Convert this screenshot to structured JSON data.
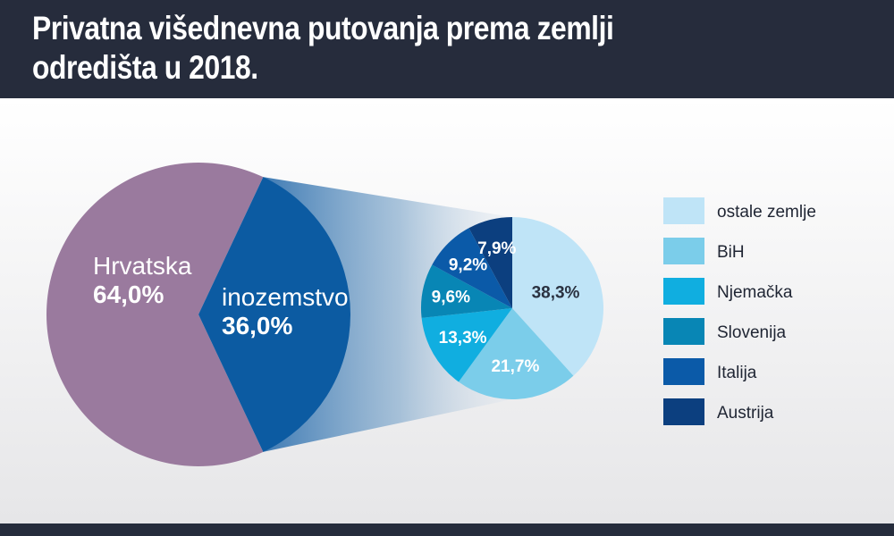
{
  "title": "Privatna višednevna putovanja prema zemlji odredišta u 2018.",
  "chart_data": [
    {
      "type": "pie",
      "slices": [
        {
          "label": "Hrvatska",
          "value": 64.0,
          "value_label": "64,0%",
          "color": "#9a7a9e"
        },
        {
          "label": "inozemstvo",
          "value": 36.0,
          "value_label": "36,0%",
          "color": "#0c5ba2"
        }
      ]
    },
    {
      "type": "pie",
      "slices": [
        {
          "label": "ostale zemlje",
          "value": 38.3,
          "value_label": "38,3%",
          "color": "#bfe4f7"
        },
        {
          "label": "BiH",
          "value": 21.7,
          "value_label": "21,7%",
          "color": "#7bcdea"
        },
        {
          "label": "Njemačka",
          "value": 13.3,
          "value_label": "13,3%",
          "color": "#10aee0"
        },
        {
          "label": "Slovenija",
          "value": 9.6,
          "value_label": "9,6%",
          "color": "#0886b5"
        },
        {
          "label": "Italija",
          "value": 9.2,
          "value_label": "9,2%",
          "color": "#0b5aa8"
        },
        {
          "label": "Austrija",
          "value": 7.9,
          "value_label": "7,9%",
          "color": "#0c3f7f"
        }
      ],
      "legend": "right"
    }
  ]
}
